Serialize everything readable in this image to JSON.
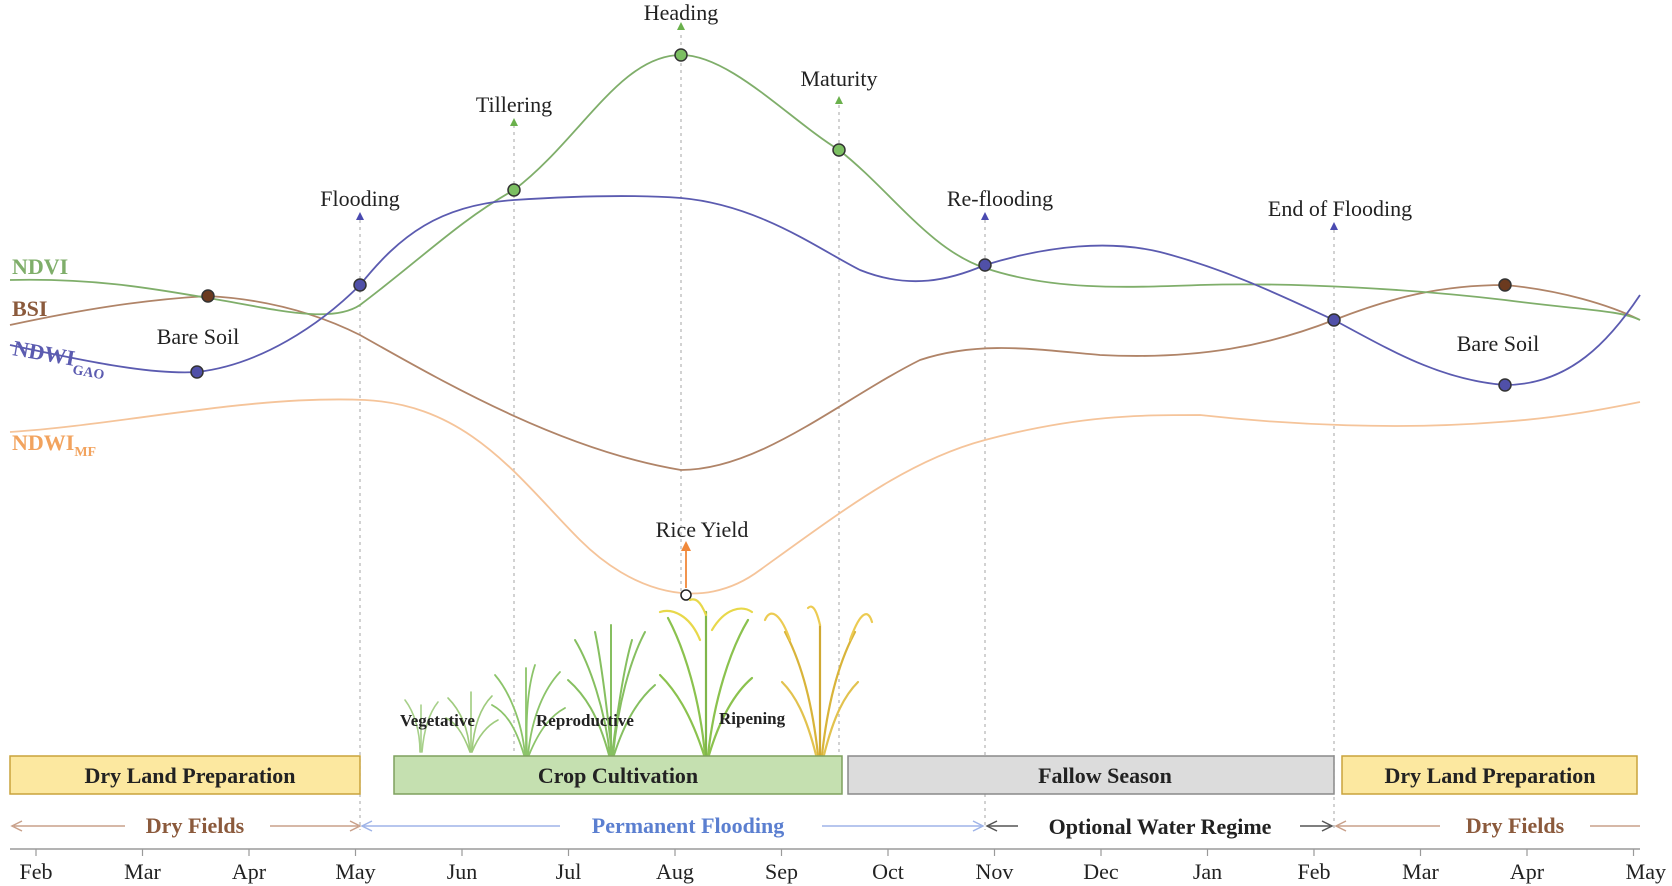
{
  "indices": [
    {
      "id": "ndvi",
      "label": "NDVI",
      "sub": "",
      "color": "#7fae6a"
    },
    {
      "id": "bsi",
      "label": "BSI",
      "sub": "",
      "color": "#8b5a3c"
    },
    {
      "id": "ndwi_gao",
      "label": "NDWI",
      "sub": "GAO",
      "color": "#5b5bb0"
    },
    {
      "id": "ndwi_mf",
      "label": "NDWI",
      "sub": "MF",
      "color": "#f2a35e"
    }
  ],
  "events": [
    {
      "label": "Heading",
      "color": "#6ab04c"
    },
    {
      "label": "Tillering",
      "color": "#6ab04c"
    },
    {
      "label": "Maturity",
      "color": "#6ab04c"
    },
    {
      "label": "Flooding",
      "color": "#4a4ab0"
    },
    {
      "label": "Re-flooding",
      "color": "#4a4ab0"
    },
    {
      "label": "End of Flooding",
      "color": "#4a4ab0"
    },
    {
      "label": "Rice Yield",
      "color": "#f0883a"
    }
  ],
  "bare_soil": [
    "Bare Soil",
    "Bare Soil"
  ],
  "phases": [
    "Vegetative",
    "Reproductive",
    "Ripening"
  ],
  "season_boxes": [
    {
      "label": "Dry Land Preparation",
      "fill": "#fce8a0",
      "stroke": "#c9a33c"
    },
    {
      "label": "Crop Cultivation",
      "fill": "#c5e0b0",
      "stroke": "#7ea05e"
    },
    {
      "label": "Fallow Season",
      "fill": "#dcdcdc",
      "stroke": "#8a8a8a"
    },
    {
      "label": "Dry Land Preparation",
      "fill": "#fce8a0",
      "stroke": "#c9a33c"
    }
  ],
  "water_regimes": [
    {
      "label": "Dry Fields",
      "color": "#8b5a3c"
    },
    {
      "label": "Permanent Flooding",
      "color": "#5b7fd0"
    },
    {
      "label": "Optional Water Regime",
      "color": "#222222"
    },
    {
      "label": "Dry Fields",
      "color": "#8b5a3c"
    }
  ],
  "months": [
    "Feb",
    "Mar",
    "Apr",
    "May",
    "Jun",
    "Jul",
    "Aug",
    "Sep",
    "Oct",
    "Nov",
    "Dec",
    "Jan",
    "Feb",
    "Mar",
    "Apr",
    "May"
  ]
}
